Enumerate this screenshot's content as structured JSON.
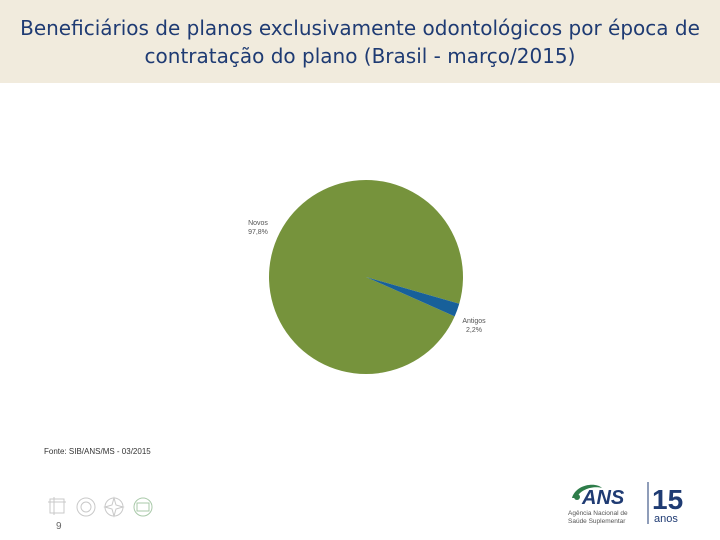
{
  "header": {
    "title_line1": "Beneficiários de planos exclusivamente odontológicos por época de",
    "title_line2": "contratação do plano (Brasil - março/2015)"
  },
  "chart_data": {
    "type": "pie",
    "title": "Beneficiários de planos exclusivamente odontológicos por época de contratação do plano (Brasil - março/2015)",
    "slices": [
      {
        "label": "Novos",
        "value": 97.8,
        "display": "97,8%",
        "color": "#76933c"
      },
      {
        "label": "Antigos",
        "value": 2.2,
        "display": "2,2%",
        "color": "#17609a"
      }
    ]
  },
  "footer": {
    "source": "Fonte: SIB/ANS/MS - 03/2015",
    "page_number": "9"
  },
  "logo": {
    "ans": "ANS",
    "subtitle_line1": "Agência Nacional de",
    "subtitle_line2": "Saúde Suplementar",
    "years_number": "15",
    "years_word": "anos",
    "brand_color": "#2e7d4a",
    "accent_color": "#1f3b73"
  }
}
